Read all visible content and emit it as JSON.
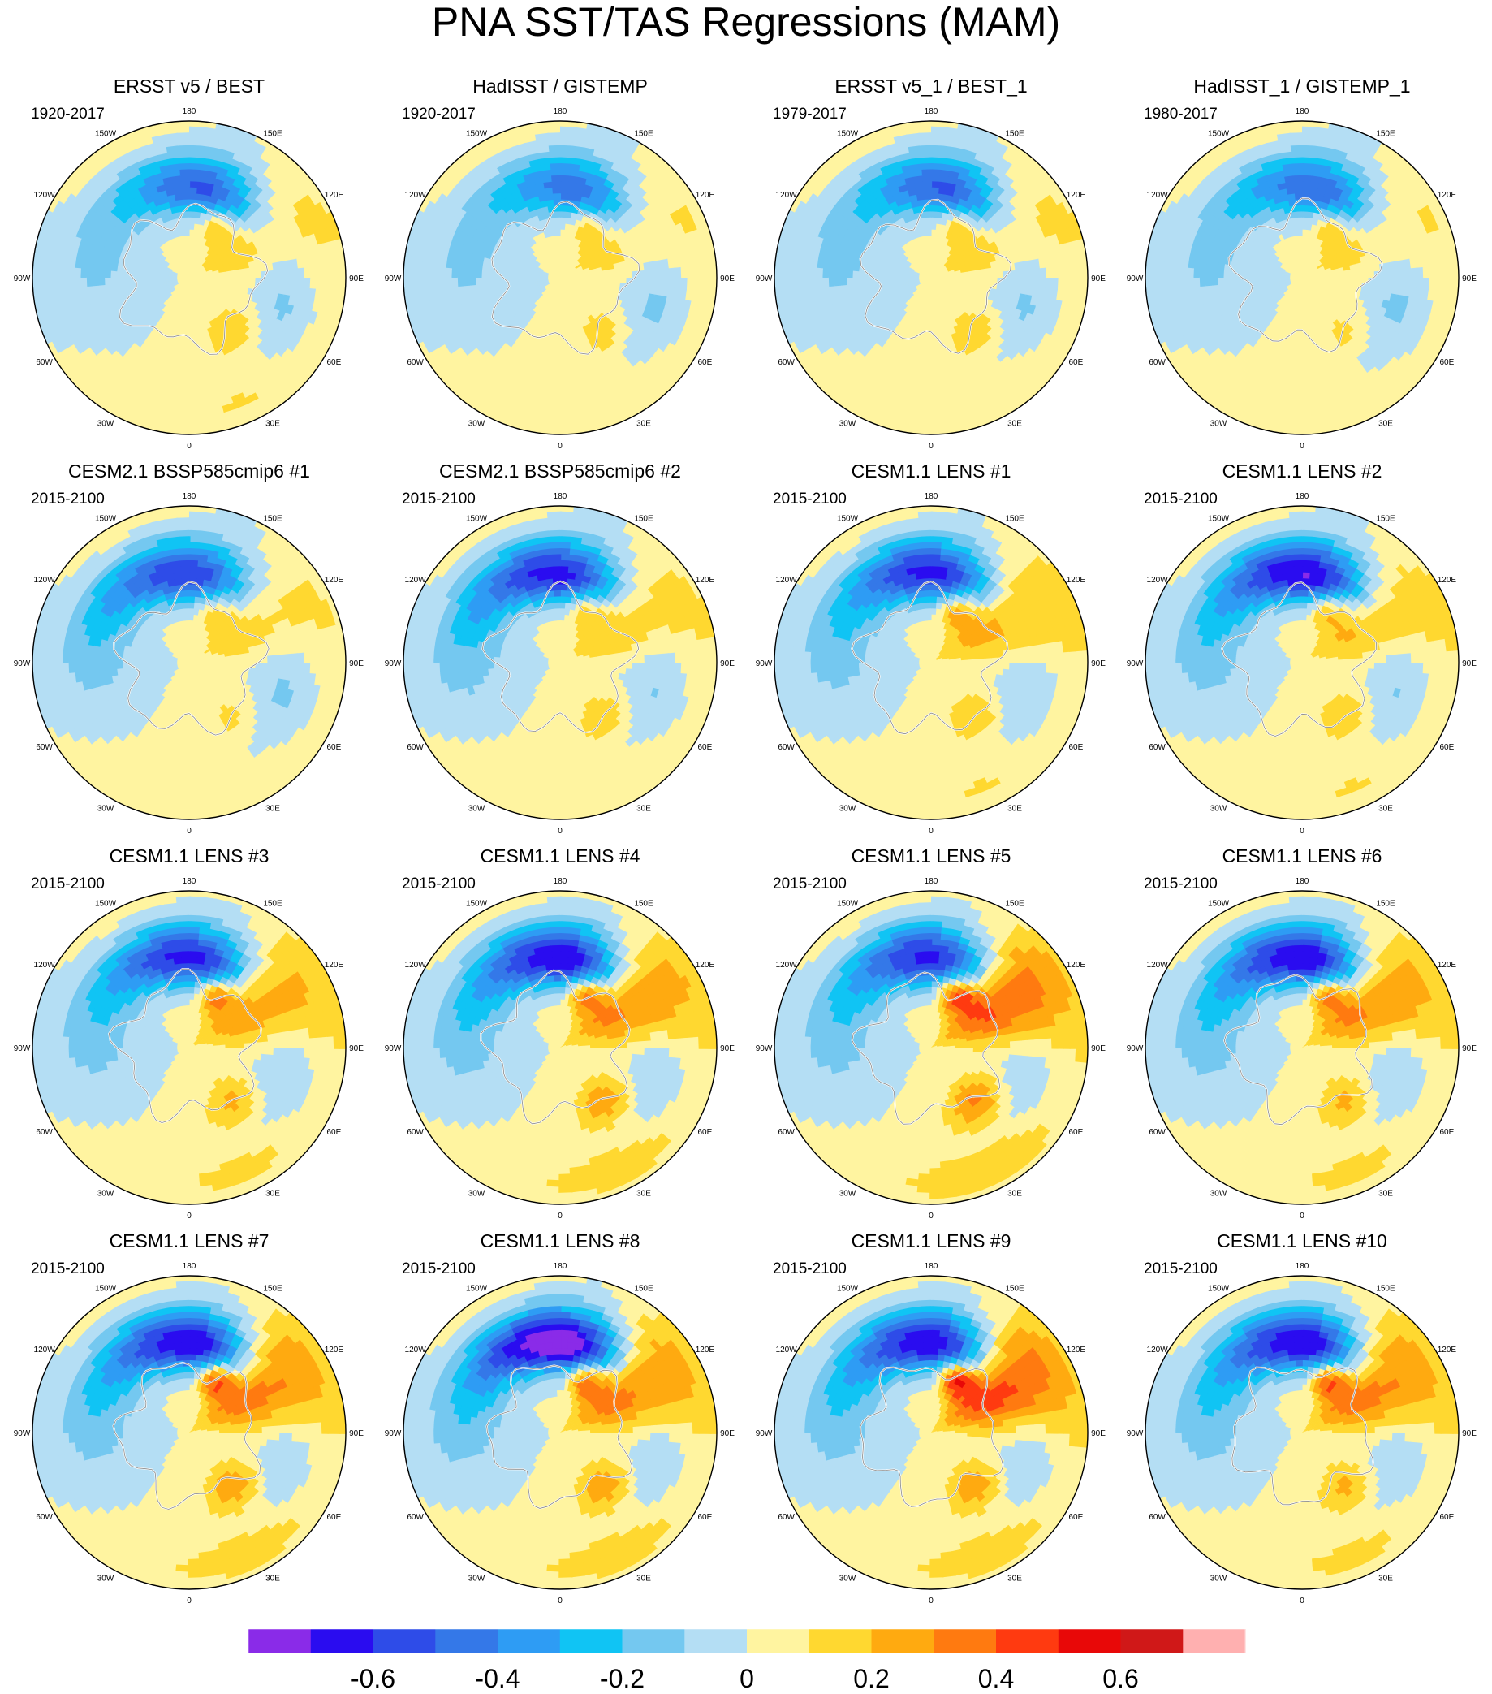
{
  "chart_data": {
    "type": "heatmap",
    "title": "PNA SST/TAS Regressions (MAM)",
    "projection": "north-polar-stereographic",
    "longitude_labels": [
      "180",
      "150E",
      "120E",
      "90E",
      "60E",
      "30E",
      "0",
      "30W",
      "60W",
      "90W",
      "120W",
      "150W"
    ],
    "colorbar": {
      "tick_labels": [
        "-0.6",
        "-0.4",
        "-0.2",
        "0",
        "0.2",
        "0.4",
        "0.6"
      ],
      "tick_values": [
        -0.6,
        -0.4,
        -0.2,
        0,
        0.2,
        0.4,
        0.6
      ],
      "bin_edges": [
        -0.8,
        -0.7,
        -0.6,
        -0.5,
        -0.4,
        -0.3,
        -0.2,
        -0.1,
        0,
        0.1,
        0.2,
        0.3,
        0.4,
        0.5,
        0.6,
        0.7,
        0.8
      ],
      "colors": [
        "#8a2be8",
        "#2a0cf0",
        "#2e4ce8",
        "#3478e8",
        "#2e9cf4",
        "#10c4f4",
        "#74c8f0",
        "#b4def4",
        "#fff4a0",
        "#ffd830",
        "#ffaa10",
        "#ff7a10",
        "#ff3a10",
        "#e80808",
        "#d01818",
        "#ffb0b0"
      ]
    },
    "panels": [
      {
        "title": "ERSST v5 / BEST",
        "period": "1920-2017",
        "pna_low_center": 180,
        "low_intensity": 0.45,
        "pacific_warm_anomaly": 0.25,
        "atlantic_warm_anomaly": 0.22
      },
      {
        "title": "HadISST / GISTEMP",
        "period": "1920-2017",
        "pna_low_center": 180,
        "low_intensity": 0.4,
        "pacific_warm_anomaly": 0.22,
        "atlantic_warm_anomaly": 0.18
      },
      {
        "title": "ERSST v5_1 / BEST_1",
        "period": "1979-2017",
        "pna_low_center": 180,
        "low_intensity": 0.45,
        "pacific_warm_anomaly": 0.25,
        "atlantic_warm_anomaly": 0.2
      },
      {
        "title": "HadISST_1 / GISTEMP_1",
        "period": "1980-2017",
        "pna_low_center": 180,
        "low_intensity": 0.42,
        "pacific_warm_anomaly": 0.22,
        "atlantic_warm_anomaly": 0.15
      },
      {
        "title": "CESM2.1 BSSP585cmip6 #1",
        "period": "2015-2100",
        "pna_low_center": 165,
        "low_intensity": 0.5,
        "pacific_warm_anomaly": 0.22,
        "atlantic_warm_anomaly": 0.15
      },
      {
        "title": "CESM2.1 BSSP585cmip6 #2",
        "period": "2015-2100",
        "pna_low_center": 165,
        "low_intensity": 0.55,
        "pacific_warm_anomaly": 0.25,
        "atlantic_warm_anomaly": 0.2
      },
      {
        "title": "CESM1.1 LENS #1",
        "period": "2015-2100",
        "pna_low_center": 170,
        "low_intensity": 0.55,
        "pacific_warm_anomaly": 0.35,
        "atlantic_warm_anomaly": 0.22
      },
      {
        "title": "CESM1.1 LENS #2",
        "period": "2015-2100",
        "pna_low_center": 170,
        "low_intensity": 0.6,
        "pacific_warm_anomaly": 0.3,
        "atlantic_warm_anomaly": 0.22
      },
      {
        "title": "CESM1.1 LENS #3",
        "period": "2015-2100",
        "pna_low_center": 170,
        "low_intensity": 0.55,
        "pacific_warm_anomaly": 0.4,
        "atlantic_warm_anomaly": 0.25
      },
      {
        "title": "CESM1.1 LENS #4",
        "period": "2015-2100",
        "pna_low_center": 170,
        "low_intensity": 0.6,
        "pacific_warm_anomaly": 0.45,
        "atlantic_warm_anomaly": 0.3
      },
      {
        "title": "CESM1.1 LENS #5",
        "period": "2015-2100",
        "pna_low_center": 170,
        "low_intensity": 0.55,
        "pacific_warm_anomaly": 0.55,
        "atlantic_warm_anomaly": 0.35
      },
      {
        "title": "CESM1.1 LENS #6",
        "period": "2015-2100",
        "pna_low_center": 170,
        "low_intensity": 0.6,
        "pacific_warm_anomaly": 0.45,
        "atlantic_warm_anomaly": 0.25
      },
      {
        "title": "CESM1.1 LENS #7",
        "period": "2015-2100",
        "pna_low_center": 170,
        "low_intensity": 0.6,
        "pacific_warm_anomaly": 0.5,
        "atlantic_warm_anomaly": 0.3
      },
      {
        "title": "CESM1.1 LENS #8",
        "period": "2015-2100",
        "pna_low_center": 170,
        "low_intensity": 0.72,
        "pacific_warm_anomaly": 0.5,
        "atlantic_warm_anomaly": 0.3
      },
      {
        "title": "CESM1.1 LENS #9",
        "period": "2015-2100",
        "pna_low_center": 170,
        "low_intensity": 0.6,
        "pacific_warm_anomaly": 0.6,
        "atlantic_warm_anomaly": 0.3
      },
      {
        "title": "CESM1.1 LENS #10",
        "period": "2015-2100",
        "pna_low_center": 170,
        "low_intensity": 0.6,
        "pacific_warm_anomaly": 0.5,
        "atlantic_warm_anomaly": 0.25
      }
    ]
  }
}
